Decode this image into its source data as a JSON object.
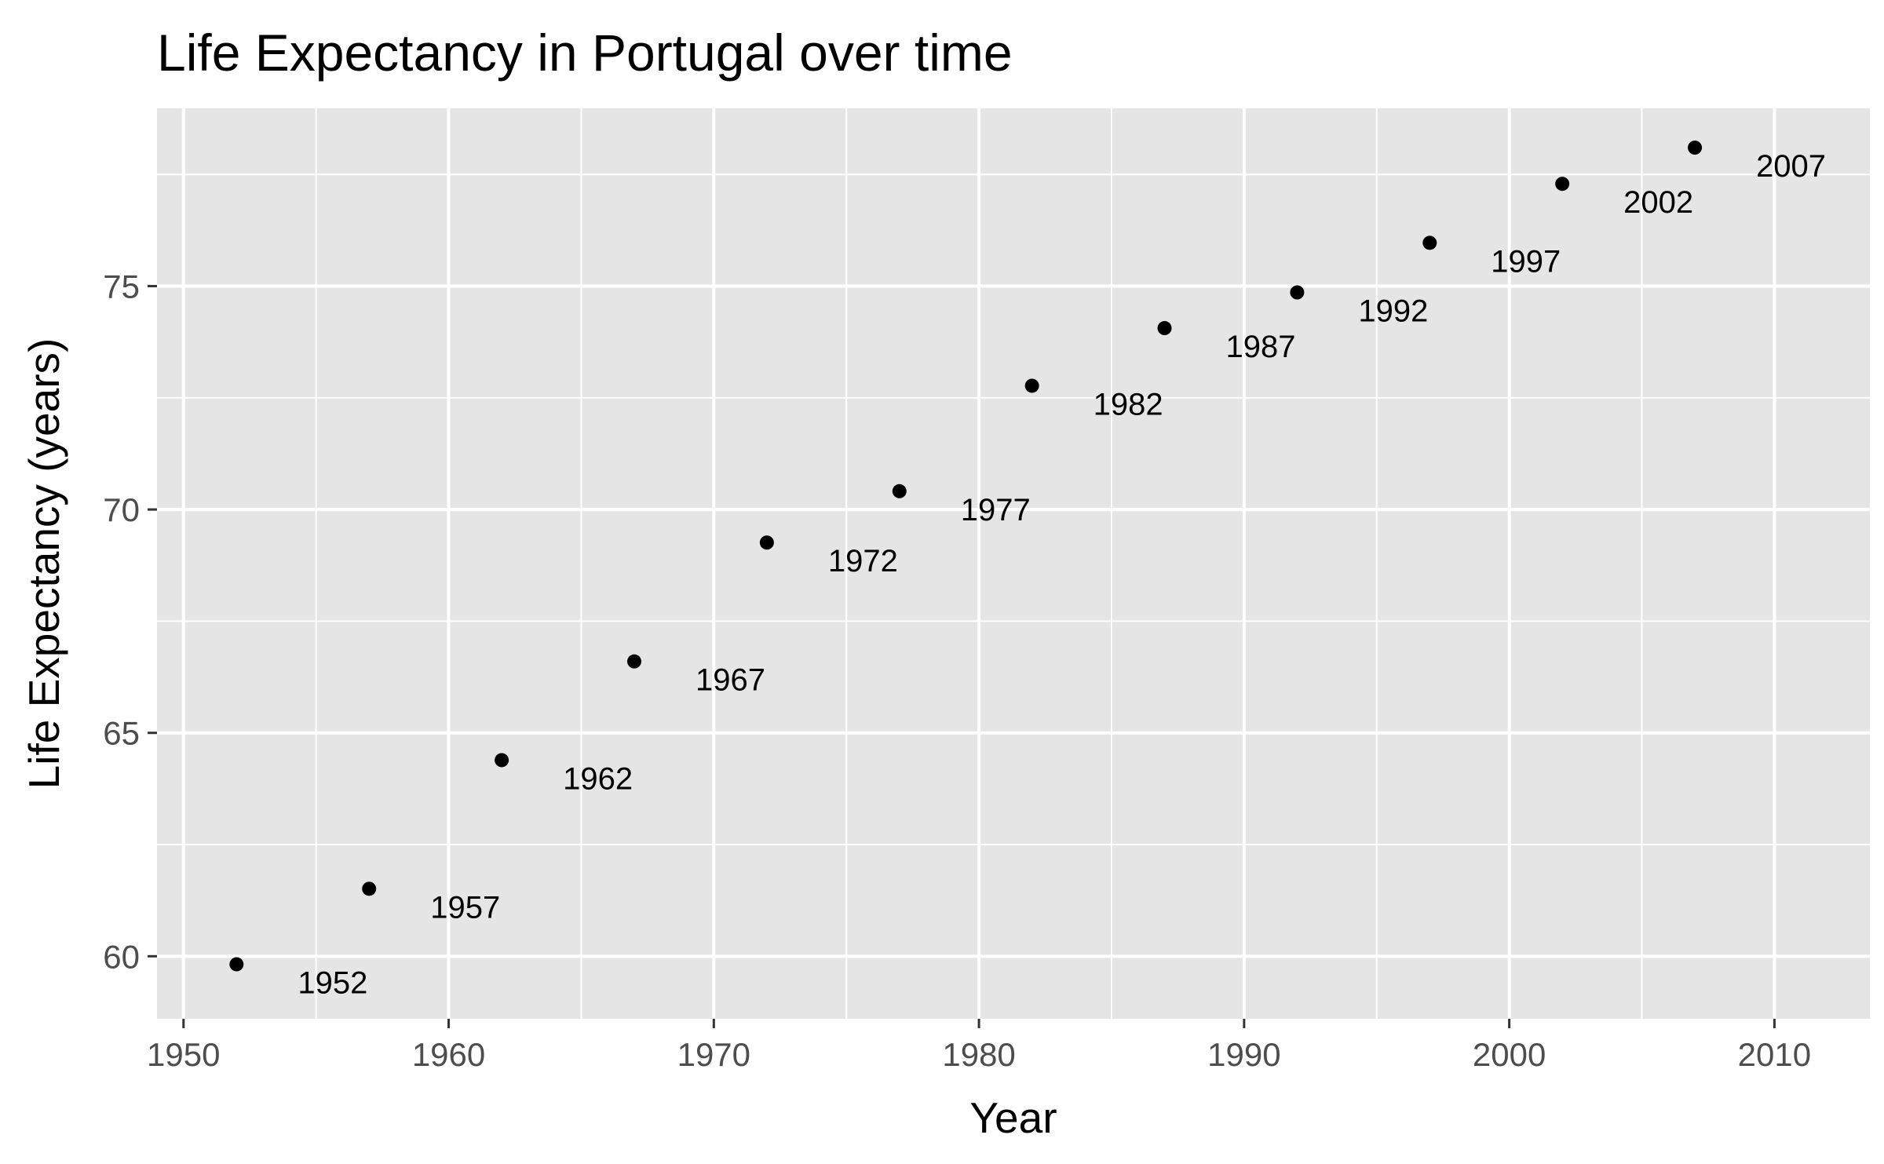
{
  "chart_data": {
    "type": "scatter",
    "title": "Life Expectancy in Portugal over time",
    "xlabel": "Year",
    "ylabel": "Life Expectancy (years)",
    "xlim": [
      1949,
      2013.6
    ],
    "ylim": [
      58.6,
      78.98
    ],
    "xticks": [
      1950,
      1960,
      1970,
      1980,
      1990,
      2000,
      2010
    ],
    "yticks": [
      60,
      65,
      70,
      75
    ],
    "grid": true,
    "points": [
      {
        "x": 1952,
        "y": 59.82,
        "label": "1952"
      },
      {
        "x": 1957,
        "y": 61.51,
        "label": "1957"
      },
      {
        "x": 1962,
        "y": 64.39,
        "label": "1962"
      },
      {
        "x": 1967,
        "y": 66.6,
        "label": "1967"
      },
      {
        "x": 1972,
        "y": 69.26,
        "label": "1972"
      },
      {
        "x": 1977,
        "y": 70.41,
        "label": "1977"
      },
      {
        "x": 1982,
        "y": 72.77,
        "label": "1982"
      },
      {
        "x": 1987,
        "y": 74.06,
        "label": "1987"
      },
      {
        "x": 1992,
        "y": 74.86,
        "label": "1992"
      },
      {
        "x": 1997,
        "y": 75.97,
        "label": "1997"
      },
      {
        "x": 2002,
        "y": 77.29,
        "label": "2002"
      },
      {
        "x": 2007,
        "y": 78.1,
        "label": "2007"
      }
    ],
    "colors": {
      "panel": "#e5e5e5",
      "grid": "#ffffff",
      "point": "#000000",
      "tick": "#4d4d4d"
    }
  }
}
